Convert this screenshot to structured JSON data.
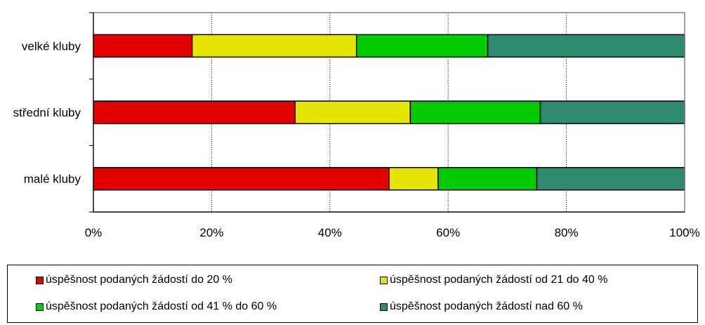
{
  "chart_data": {
    "type": "bar",
    "orientation": "horizontal",
    "stacked": "percent",
    "categories": [
      "velké kluby",
      "střední kluby",
      "malé kluby"
    ],
    "series": [
      {
        "name": "úspěšnost podaných žádostí do 20 %",
        "color": "#e30000",
        "values": [
          16.7,
          34.1,
          50.0
        ]
      },
      {
        "name": "úspěšnost podaných žádostí od 21 do 40 %",
        "color": "#e5e500",
        "values": [
          27.8,
          19.5,
          8.3
        ]
      },
      {
        "name": "úspěšnost podaných žádostí od 41 % do 60 %",
        "color": "#00cc00",
        "values": [
          22.2,
          22.0,
          16.7
        ]
      },
      {
        "name": "úspěšnost podaných žádostí nad 60 %",
        "color": "#2e8b6f",
        "values": [
          33.3,
          24.4,
          25.0
        ]
      }
    ],
    "x_ticks": [
      "0%",
      "20%",
      "40%",
      "60%",
      "80%",
      "100%"
    ],
    "xlim": [
      0,
      100
    ],
    "grid": "vertical",
    "legend_position": "bottom"
  }
}
